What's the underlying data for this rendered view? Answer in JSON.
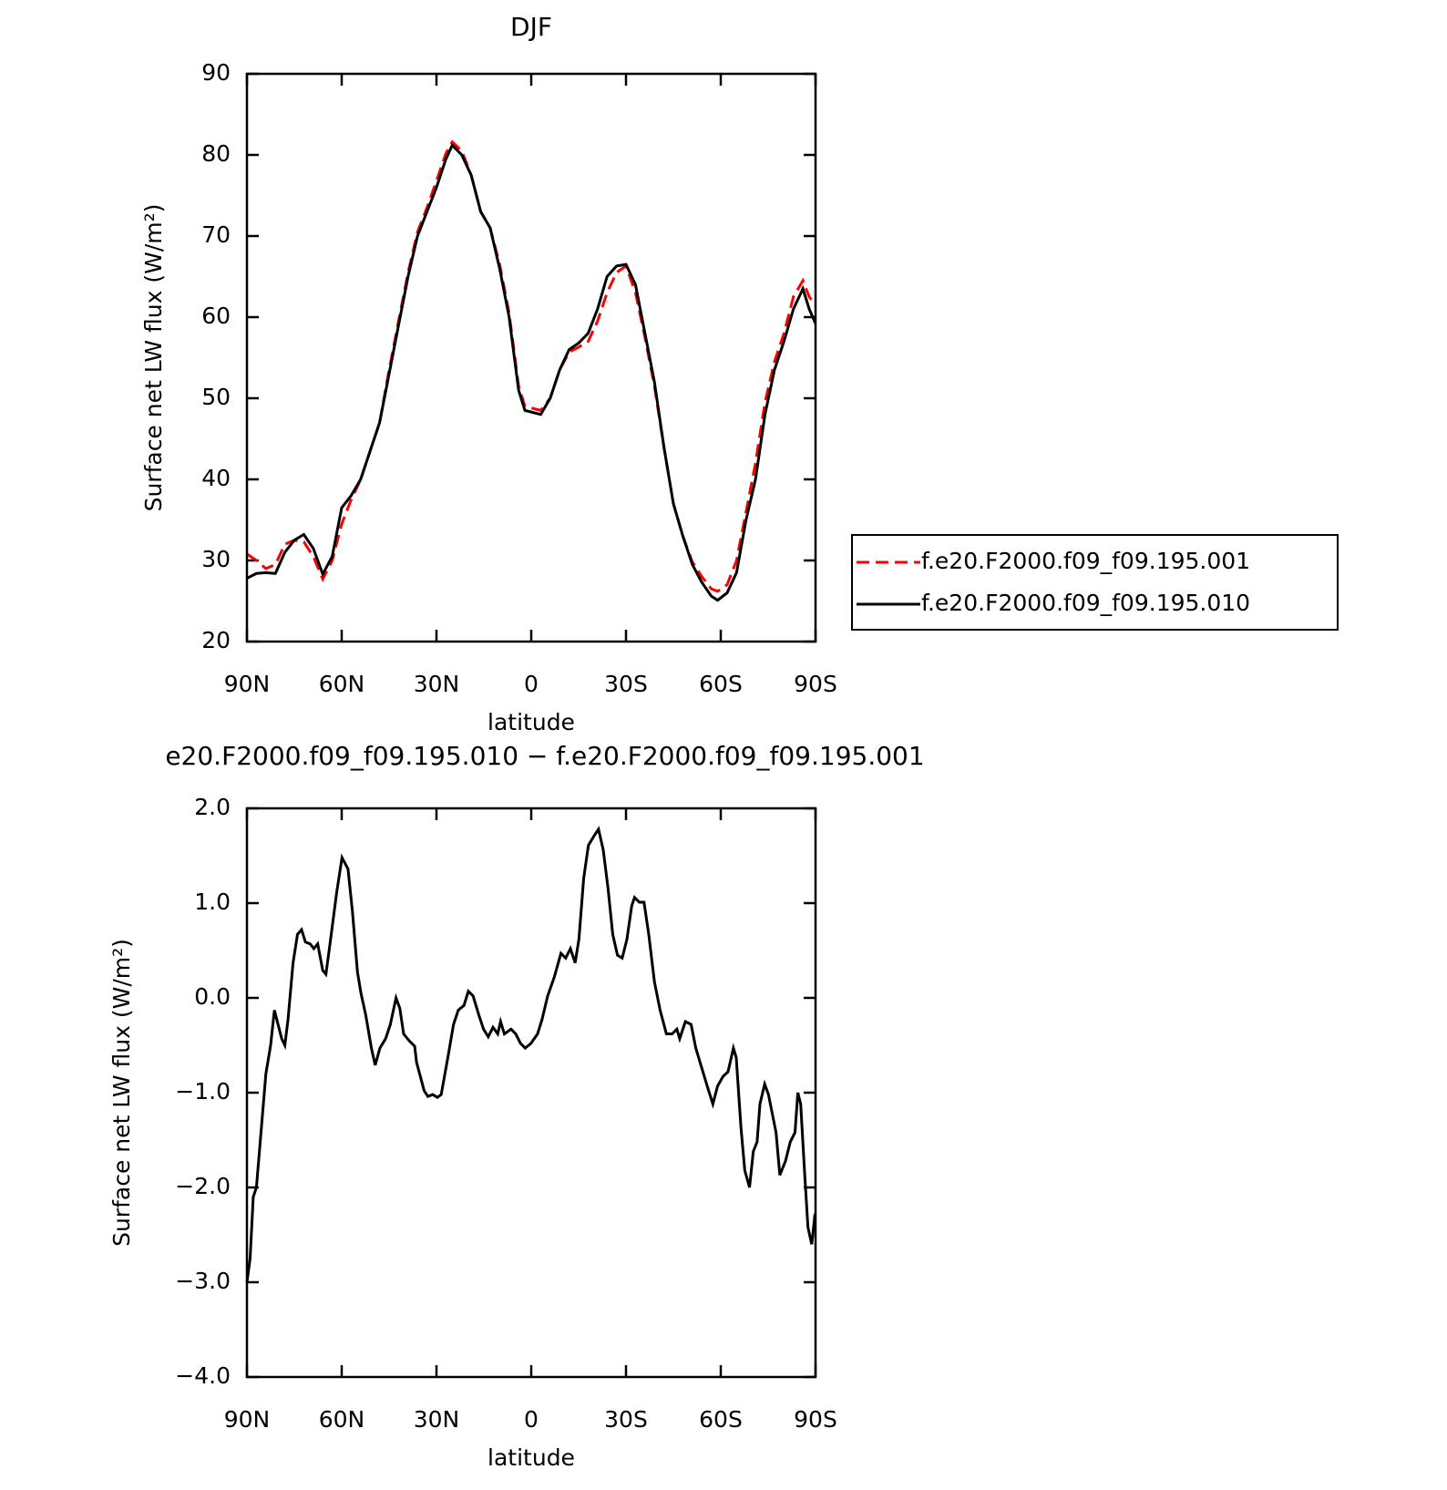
{
  "chart_data": [
    {
      "type": "line",
      "title": "DJF",
      "x_label": "latitude",
      "y_label": "Surface net LW flux (W/m²)",
      "xlim": [
        90,
        -90
      ],
      "xticks": [
        {
          "value": 90,
          "label": "90N"
        },
        {
          "value": 60,
          "label": "60N"
        },
        {
          "value": 30,
          "label": "30N"
        },
        0,
        {
          "value": -30,
          "label": "30S"
        },
        {
          "value": -60,
          "label": "60S"
        },
        {
          "value": -90,
          "label": "90S"
        }
      ],
      "ylim": [
        20,
        90
      ],
      "yticks": [
        20,
        30,
        40,
        50,
        60,
        70,
        80,
        90
      ],
      "legend": "outside-right",
      "x": [
        90,
        87,
        84,
        81,
        78,
        75,
        72,
        69,
        66,
        63,
        60,
        57,
        54,
        51,
        48,
        45,
        42,
        39,
        36,
        33,
        30,
        27,
        25,
        22,
        19,
        16,
        13,
        10,
        7,
        4,
        2,
        0,
        -3,
        -6,
        -9,
        -12,
        -15,
        -18,
        -21,
        -24,
        -27,
        -30,
        -33,
        -36,
        -39,
        -42,
        -45,
        -48,
        -51,
        -54,
        -57,
        -59,
        -62,
        -65,
        -68,
        -71,
        -74,
        -77,
        -80,
        -83,
        -86,
        -88,
        -90
      ],
      "series": [
        {
          "name": "f.e20.F2000.f09_f09.195.001",
          "color": "#ff0000",
          "dash": "dashed",
          "values": [
            30.8,
            30,
            29,
            29.5,
            32,
            32.5,
            32.3,
            30.5,
            27.7,
            30,
            34.5,
            37.5,
            40,
            43.5,
            47,
            53.5,
            59.5,
            65.5,
            70.5,
            73.5,
            76.8,
            80.2,
            81.6,
            80.5,
            77.5,
            73,
            71,
            66.5,
            60.5,
            51.5,
            49,
            48.8,
            48.5,
            50,
            53.5,
            55.7,
            56.3,
            57,
            59.5,
            63,
            65.5,
            66.3,
            63,
            57.5,
            51.5,
            44,
            37,
            33,
            29.8,
            28,
            26.5,
            26.2,
            27,
            30,
            36,
            42,
            49.5,
            54.5,
            58,
            62.5,
            64.5,
            62.5,
            61.5
          ]
        },
        {
          "name": "f.e20.F2000.f09_f09.195.010",
          "color": "#000000",
          "dash": "solid",
          "values": [
            27.8,
            28.4,
            28.5,
            28.4,
            31,
            32.5,
            33.2,
            31.5,
            28.3,
            30.5,
            36.5,
            38,
            40,
            43.5,
            47,
            53,
            59,
            65,
            70,
            73,
            76,
            79.5,
            81.2,
            80,
            77.5,
            73,
            71,
            66,
            60,
            51,
            48.5,
            48.3,
            48,
            50,
            53.5,
            56,
            56.8,
            58,
            61,
            65,
            66.3,
            66.5,
            64,
            58,
            52,
            44,
            37,
            33,
            29.5,
            27.3,
            25.6,
            25.1,
            26,
            28.5,
            35,
            40,
            48,
            53.5,
            57,
            61,
            63.5,
            61,
            59.2
          ]
        }
      ]
    },
    {
      "type": "line",
      "title": "e20.F2000.f09_f09.195.010 − f.e20.F2000.f09_f09.195.001",
      "x_label": "latitude",
      "y_label": "Surface net LW flux (W/m²)",
      "xlim": [
        90,
        -90
      ],
      "xticks": [
        {
          "value": 90,
          "label": "90N"
        },
        {
          "value": 60,
          "label": "60N"
        },
        {
          "value": 30,
          "label": "30N"
        },
        0,
        {
          "value": -30,
          "label": "30S"
        },
        {
          "value": -60,
          "label": "60S"
        },
        {
          "value": -90,
          "label": "90S"
        }
      ],
      "ylim": [
        -4,
        2
      ],
      "yticks": [
        {
          "value": 2,
          "label": "2.0"
        },
        {
          "value": 1,
          "label": "1.0"
        },
        {
          "value": 0,
          "label": "0.0"
        },
        {
          "value": -1,
          "label": "−1.0"
        },
        {
          "value": -2,
          "label": "−2.0"
        },
        {
          "value": -3,
          "label": "−3.0"
        },
        {
          "value": -4,
          "label": "−4.0"
        }
      ],
      "x": [
        90,
        89,
        88,
        87,
        85.5,
        84,
        82.5,
        81.3,
        79,
        78,
        77,
        75.4,
        74,
        72.7,
        71.5,
        70,
        68.8,
        67.6,
        66,
        65,
        63.7,
        61.6,
        59.9,
        58,
        56.6,
        55,
        53.9,
        52.4,
        50.6,
        49.4,
        47.9,
        46.1,
        44.6,
        42.8,
        41.6,
        40.4,
        38.7,
        36.9,
        36.3,
        33.9,
        32.7,
        31.2,
        29.7,
        28.5,
        26.4,
        24.6,
        23.1,
        21.3,
        19.9,
        18.4,
        16.6,
        15.1,
        13.6,
        12.1,
        10.6,
        9.7,
        8.5,
        6.4,
        4.9,
        3.4,
        1.9,
        0.1,
        -2,
        -3.4,
        -5.2,
        -7.3,
        -9.4,
        -10.9,
        -12.4,
        -13.9,
        -15.1,
        -16.6,
        -18.1,
        -19.9,
        -21.3,
        -22.8,
        -24.3,
        -25.8,
        -27.3,
        -28.8,
        -30.3,
        -31.8,
        -32.7,
        -34.2,
        -35.7,
        -37.2,
        -39,
        -40.8,
        -42.8,
        -44.6,
        -46.1,
        -47,
        -48.8,
        -50.6,
        -52.1,
        -53.9,
        -55.7,
        -57.5,
        -59,
        -60.7,
        -62.3,
        -64,
        -64.9,
        -66.4,
        -67.6,
        -69.1,
        -70.3,
        -71.5,
        -72.4,
        -73.9,
        -75.1,
        -76.3,
        -77.5,
        -78.7,
        -80.5,
        -82,
        -83.5,
        -84.4,
        -85.3,
        -86.5,
        -87.6,
        -88.8,
        -89.7,
        -90
      ],
      "series": [
        {
          "color": "#000000",
          "dash": "solid",
          "values": [
            -3.0,
            -2.75,
            -2.1,
            -2.0,
            -1.4,
            -0.8,
            -0.5,
            -0.13,
            -0.43,
            -0.5,
            -0.23,
            0.37,
            0.67,
            0.72,
            0.59,
            0.57,
            0.52,
            0.57,
            0.29,
            0.25,
            0.57,
            1.11,
            1.48,
            1.36,
            0.91,
            0.27,
            0.05,
            -0.18,
            -0.53,
            -0.71,
            -0.53,
            -0.43,
            -0.28,
            0.0,
            -0.11,
            -0.38,
            -0.45,
            -0.51,
            -0.68,
            -0.98,
            -1.04,
            -1.02,
            -1.05,
            -1.02,
            -0.63,
            -0.28,
            -0.13,
            -0.08,
            0.07,
            0.02,
            -0.18,
            -0.33,
            -0.41,
            -0.31,
            -0.38,
            -0.25,
            -0.38,
            -0.33,
            -0.38,
            -0.48,
            -0.53,
            -0.48,
            -0.38,
            -0.23,
            0.02,
            0.22,
            0.47,
            0.42,
            0.52,
            0.37,
            0.62,
            1.26,
            1.61,
            1.71,
            1.78,
            1.56,
            1.16,
            0.67,
            0.45,
            0.42,
            0.62,
            0.97,
            1.06,
            1.01,
            1.01,
            0.67,
            0.17,
            -0.13,
            -0.38,
            -0.38,
            -0.33,
            -0.43,
            -0.25,
            -0.28,
            -0.53,
            -0.73,
            -0.93,
            -1.12,
            -0.93,
            -0.83,
            -0.78,
            -0.53,
            -0.63,
            -1.37,
            -1.82,
            -2.0,
            -1.62,
            -1.52,
            -1.12,
            -0.91,
            -1.02,
            -1.22,
            -1.42,
            -1.87,
            -1.72,
            -1.52,
            -1.42,
            -1.0,
            -1.12,
            -1.82,
            -2.42,
            -2.6,
            -2.32,
            -2.34
          ]
        }
      ]
    }
  ]
}
